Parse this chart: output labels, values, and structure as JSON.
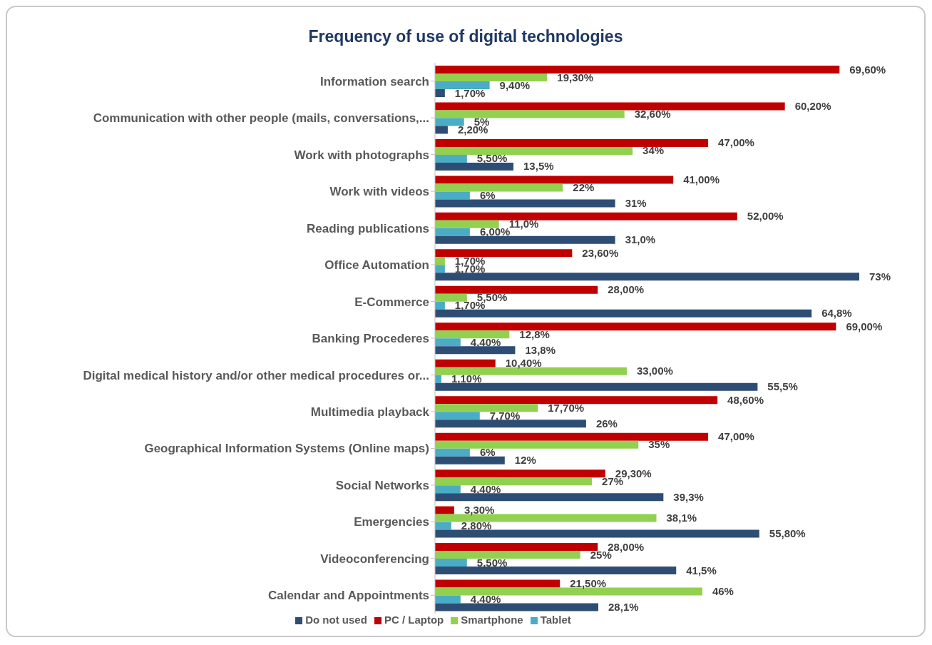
{
  "chart_data": {
    "type": "bar",
    "orientation": "horizontal",
    "title": "Frequency of use of digital technologies",
    "legend": "bottom",
    "grid": false,
    "categories": [
      "Information search",
      "Communication with other people (mails, conversations,...",
      "Work with photographs",
      "Work with videos",
      "Reading publications ",
      "Office Automation",
      "E-Commerce",
      "Banking Procederes",
      "Digital medical history and/or other medical procedures or...",
      "Multimedia playback",
      "Geographical Information Systems (Online maps)",
      "Social Networks",
      "Emergencies",
      "Videoconferencing",
      "Calendar and Appointments"
    ],
    "series": [
      {
        "name": "PC / Laptop",
        "color": "#c00000",
        "values": [
          69.6,
          60.2,
          47,
          41,
          52,
          23.6,
          28,
          69,
          10.4,
          48.6,
          47,
          29.3,
          3.3,
          28,
          21.5
        ],
        "value_labels": [
          "69,60%",
          "60,20%",
          "47,00%",
          "41,00%",
          "52,00%",
          "23,60%",
          "28,00%",
          "69,00%",
          "10,40%",
          "48,60%",
          "47,00%",
          "29,30%",
          "3,30%",
          "28,00%",
          "21,50%"
        ]
      },
      {
        "name": "Smartphone",
        "color": "#92d050",
        "values": [
          19.3,
          32.6,
          34,
          22,
          11,
          1.7,
          5.5,
          12.8,
          33,
          17.7,
          35,
          27,
          38.1,
          25,
          46
        ],
        "value_labels": [
          "19,30%",
          "32,60%",
          "34%",
          "22%",
          "11,0%",
          "1,70%",
          "5,50%",
          "12,8%",
          "33,00%",
          "17,70%",
          "35%",
          "27%",
          "38,1%",
          "25%",
          "46%"
        ]
      },
      {
        "name": "Tablet",
        "color": "#4bacc6",
        "values": [
          9.4,
          5,
          5.5,
          6,
          6,
          1.7,
          1.7,
          4.4,
          1.1,
          7.7,
          6,
          4.4,
          2.8,
          5.5,
          4.4
        ],
        "value_labels": [
          "9,40%",
          "5%",
          "5,50%",
          "6%",
          "6,00%",
          "1,70%",
          "1,70%",
          "4,40%",
          "1,10%",
          "7,70%",
          "6%",
          "4,40%",
          "2,80%",
          "5,50%",
          "4,40%"
        ]
      },
      {
        "name": "Do not used",
        "color": "#2e4d74",
        "values": [
          1.7,
          2.2,
          13.5,
          31,
          31,
          73,
          64.8,
          13.8,
          55.5,
          26,
          12,
          39.3,
          55.8,
          41.5,
          28.1
        ],
        "value_labels": [
          "1,70%",
          "2,20%",
          "13,5%",
          "31%",
          "31,0%",
          "73%",
          "64,8%",
          "13,8%",
          "55,5%",
          "26%",
          "12%",
          "39,3%",
          "55,80%",
          "41,5%",
          "28,1%"
        ]
      }
    ]
  }
}
